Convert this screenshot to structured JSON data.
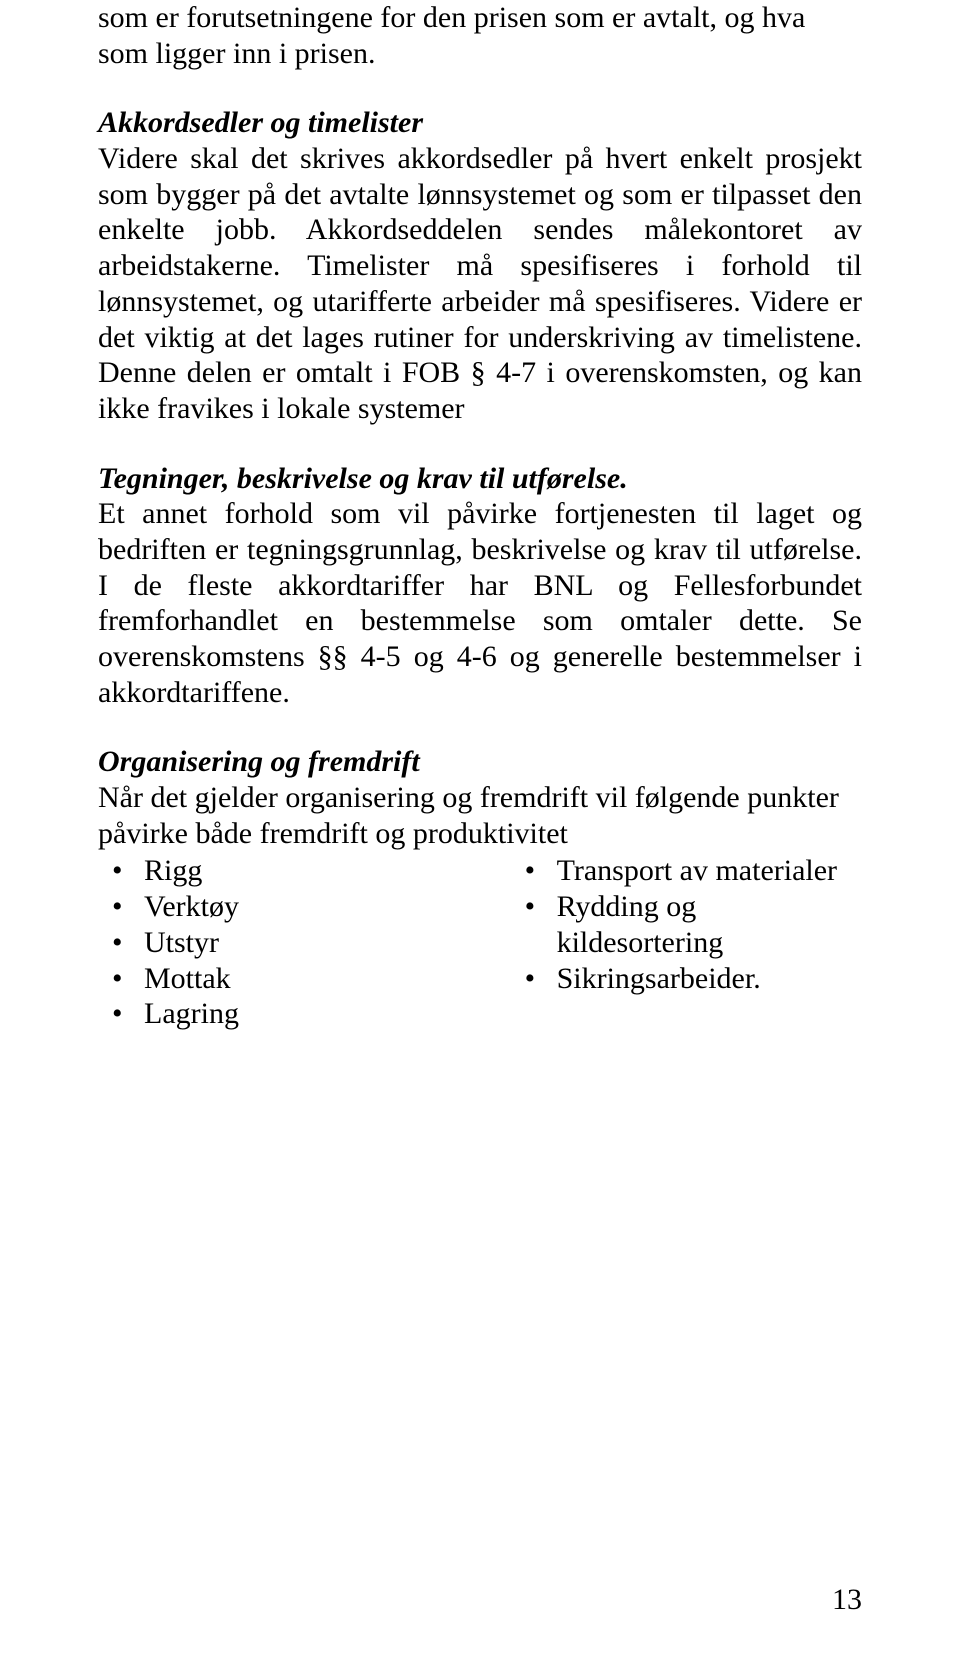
{
  "paragraphs": {
    "p1": "som er forutsetningene for den prisen som er avtalt, og hva som ligger inn i prisen.",
    "h2": "Akkordsedler og timelister",
    "p2": "Videre skal det skrives akkordsedler på hvert enkelt prosjekt som bygger på det avtalte lønnsystemet og som er tilpasset den enkelte jobb. Akkordseddelen sendes målekontoret av arbeidstakerne. Timelister må spesifiseres i forhold til lønnsystemet, og utarifferte arbeider må spesifiseres. Videre er det viktig at det lages rutiner for underskriving av timelistene. Denne delen er omtalt i FOB § 4-7 i overenskomsten, og kan ikke fravikes i lokale systemer",
    "h3": "Tegninger, beskrivelse og krav til utførelse.",
    "p3": "Et annet forhold som vil påvirke fortjenesten til laget og bedriften er tegningsgrunnlag, beskrivelse og krav til utførelse. I de fleste akkordtariffer har BNL og Fellesforbundet fremforhandlet en bestemmelse som omtaler dette. Se overenskomstens §§ 4-5 og 4-6 og generelle bestemmelser i akkordtariffene.",
    "h4": "Organisering og fremdrift",
    "p4": "Når det gjelder organisering og fremdrift vil følgende punkter påvirke både fremdrift og produktivitet"
  },
  "lists": {
    "left": [
      "Rigg",
      "Verktøy",
      "Utstyr",
      "Mottak",
      "Lagring"
    ],
    "right": [
      "Transport av materialer",
      "Rydding og kildesortering",
      "Sikringsarbeider."
    ]
  },
  "page_number": "13"
}
